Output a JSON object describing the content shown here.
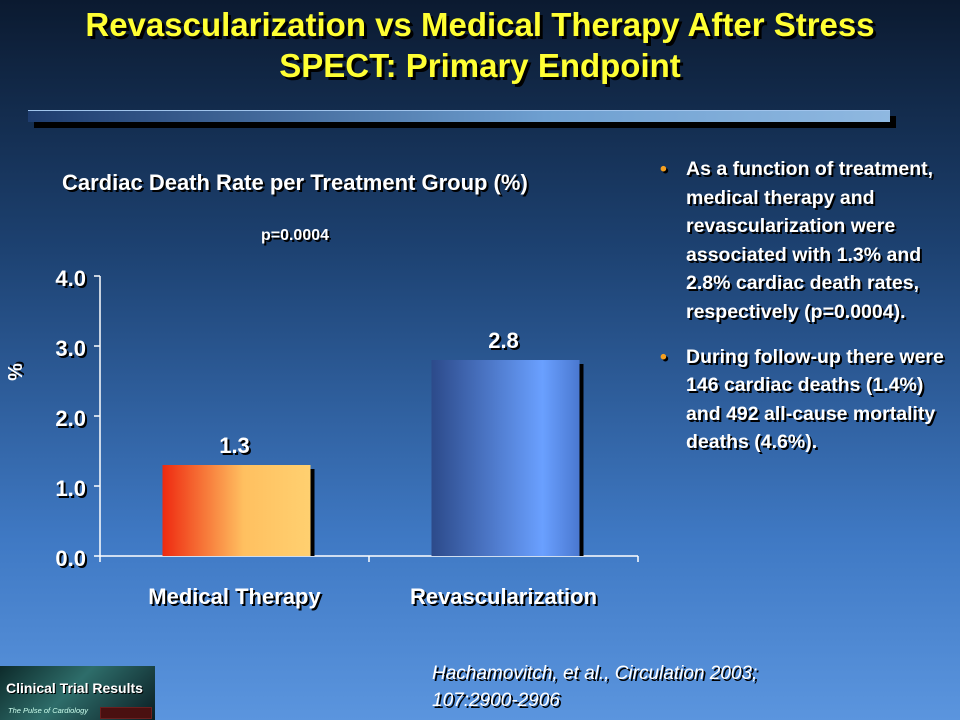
{
  "title_lines": [
    "Revascularization vs Medical Therapy After Stress",
    "SPECT: Primary Endpoint"
  ],
  "bullets": [
    "As a function of treatment, medical therapy and revascularization were associated with 1.3% and 2.8% cardiac death rates, respectively (p=0.0004).",
    "During follow-up there were 146 cardiac deaths (1.4%) and 492 all-cause mortality deaths (4.6%)."
  ],
  "citation_lines": [
    "Hachamovitch, et al., Circulation 2003;",
    "107:2900-2906"
  ],
  "logo": {
    "name": "Clinical Trial Results",
    "tagline": "The Pulse of Cardiology"
  },
  "colors": {
    "title": "#ffff33",
    "bullet": "#f5a020",
    "medical_bar": "#ee3a1a",
    "revasc_bar": "#5b8ff0"
  },
  "chart_data": {
    "type": "bar",
    "title": "Cardiac Death Rate per Treatment Group (%)",
    "annotation": "p=0.0004",
    "ylabel": "%",
    "xlabel": "",
    "categories": [
      "Medical Therapy",
      "Revascularization"
    ],
    "values": [
      1.3,
      2.8
    ],
    "value_labels": [
      "1.3",
      "2.8"
    ],
    "ylim": [
      0,
      4.0
    ],
    "yticks": [
      "0.0",
      "1.0",
      "2.0",
      "3.0",
      "4.0"
    ],
    "grid": false,
    "legend": "none"
  }
}
